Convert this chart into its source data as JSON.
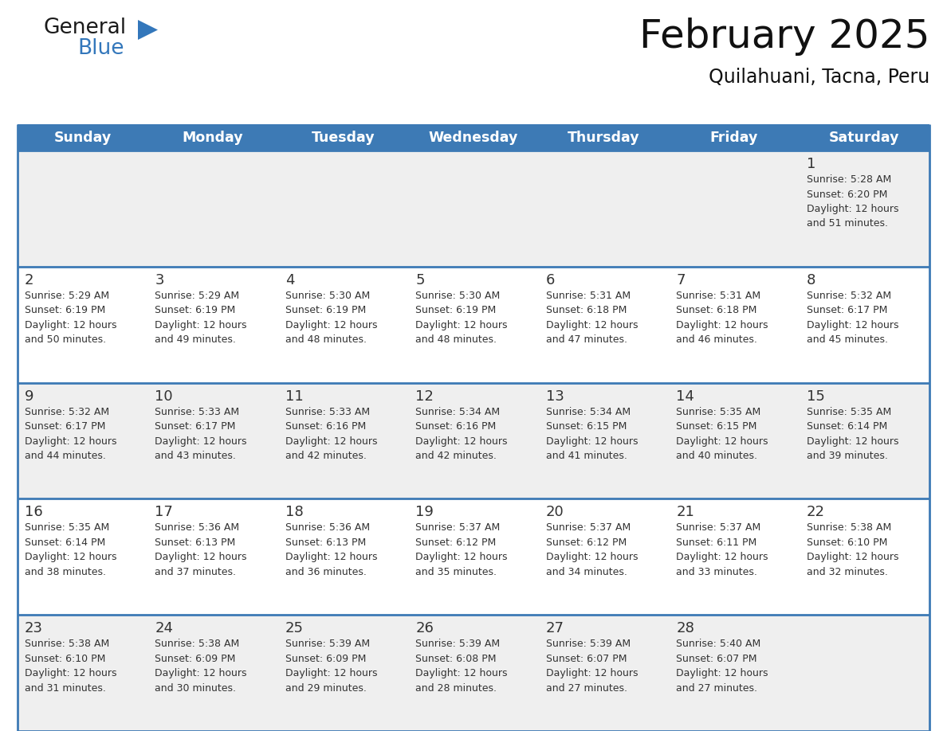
{
  "title": "February 2025",
  "subtitle": "Quilahuani, Tacna, Peru",
  "header_bg": "#3d7ab5",
  "header_text_color": "#FFFFFF",
  "day_names": [
    "Sunday",
    "Monday",
    "Tuesday",
    "Wednesday",
    "Thursday",
    "Friday",
    "Saturday"
  ],
  "cell_bg_light": "#EFEFEF",
  "cell_bg_white": "#FFFFFF",
  "cell_border_color": "#3d7ab5",
  "day_number_color": "#333333",
  "info_text_color": "#333333",
  "title_color": "#111111",
  "subtitle_color": "#111111",
  "weeks": [
    [
      {
        "day": null,
        "info": null
      },
      {
        "day": null,
        "info": null
      },
      {
        "day": null,
        "info": null
      },
      {
        "day": null,
        "info": null
      },
      {
        "day": null,
        "info": null
      },
      {
        "day": null,
        "info": null
      },
      {
        "day": 1,
        "info": "Sunrise: 5:28 AM\nSunset: 6:20 PM\nDaylight: 12 hours\nand 51 minutes."
      }
    ],
    [
      {
        "day": 2,
        "info": "Sunrise: 5:29 AM\nSunset: 6:19 PM\nDaylight: 12 hours\nand 50 minutes."
      },
      {
        "day": 3,
        "info": "Sunrise: 5:29 AM\nSunset: 6:19 PM\nDaylight: 12 hours\nand 49 minutes."
      },
      {
        "day": 4,
        "info": "Sunrise: 5:30 AM\nSunset: 6:19 PM\nDaylight: 12 hours\nand 48 minutes."
      },
      {
        "day": 5,
        "info": "Sunrise: 5:30 AM\nSunset: 6:19 PM\nDaylight: 12 hours\nand 48 minutes."
      },
      {
        "day": 6,
        "info": "Sunrise: 5:31 AM\nSunset: 6:18 PM\nDaylight: 12 hours\nand 47 minutes."
      },
      {
        "day": 7,
        "info": "Sunrise: 5:31 AM\nSunset: 6:18 PM\nDaylight: 12 hours\nand 46 minutes."
      },
      {
        "day": 8,
        "info": "Sunrise: 5:32 AM\nSunset: 6:17 PM\nDaylight: 12 hours\nand 45 minutes."
      }
    ],
    [
      {
        "day": 9,
        "info": "Sunrise: 5:32 AM\nSunset: 6:17 PM\nDaylight: 12 hours\nand 44 minutes."
      },
      {
        "day": 10,
        "info": "Sunrise: 5:33 AM\nSunset: 6:17 PM\nDaylight: 12 hours\nand 43 minutes."
      },
      {
        "day": 11,
        "info": "Sunrise: 5:33 AM\nSunset: 6:16 PM\nDaylight: 12 hours\nand 42 minutes."
      },
      {
        "day": 12,
        "info": "Sunrise: 5:34 AM\nSunset: 6:16 PM\nDaylight: 12 hours\nand 42 minutes."
      },
      {
        "day": 13,
        "info": "Sunrise: 5:34 AM\nSunset: 6:15 PM\nDaylight: 12 hours\nand 41 minutes."
      },
      {
        "day": 14,
        "info": "Sunrise: 5:35 AM\nSunset: 6:15 PM\nDaylight: 12 hours\nand 40 minutes."
      },
      {
        "day": 15,
        "info": "Sunrise: 5:35 AM\nSunset: 6:14 PM\nDaylight: 12 hours\nand 39 minutes."
      }
    ],
    [
      {
        "day": 16,
        "info": "Sunrise: 5:35 AM\nSunset: 6:14 PM\nDaylight: 12 hours\nand 38 minutes."
      },
      {
        "day": 17,
        "info": "Sunrise: 5:36 AM\nSunset: 6:13 PM\nDaylight: 12 hours\nand 37 minutes."
      },
      {
        "day": 18,
        "info": "Sunrise: 5:36 AM\nSunset: 6:13 PM\nDaylight: 12 hours\nand 36 minutes."
      },
      {
        "day": 19,
        "info": "Sunrise: 5:37 AM\nSunset: 6:12 PM\nDaylight: 12 hours\nand 35 minutes."
      },
      {
        "day": 20,
        "info": "Sunrise: 5:37 AM\nSunset: 6:12 PM\nDaylight: 12 hours\nand 34 minutes."
      },
      {
        "day": 21,
        "info": "Sunrise: 5:37 AM\nSunset: 6:11 PM\nDaylight: 12 hours\nand 33 minutes."
      },
      {
        "day": 22,
        "info": "Sunrise: 5:38 AM\nSunset: 6:10 PM\nDaylight: 12 hours\nand 32 minutes."
      }
    ],
    [
      {
        "day": 23,
        "info": "Sunrise: 5:38 AM\nSunset: 6:10 PM\nDaylight: 12 hours\nand 31 minutes."
      },
      {
        "day": 24,
        "info": "Sunrise: 5:38 AM\nSunset: 6:09 PM\nDaylight: 12 hours\nand 30 minutes."
      },
      {
        "day": 25,
        "info": "Sunrise: 5:39 AM\nSunset: 6:09 PM\nDaylight: 12 hours\nand 29 minutes."
      },
      {
        "day": 26,
        "info": "Sunrise: 5:39 AM\nSunset: 6:08 PM\nDaylight: 12 hours\nand 28 minutes."
      },
      {
        "day": 27,
        "info": "Sunrise: 5:39 AM\nSunset: 6:07 PM\nDaylight: 12 hours\nand 27 minutes."
      },
      {
        "day": 28,
        "info": "Sunrise: 5:40 AM\nSunset: 6:07 PM\nDaylight: 12 hours\nand 27 minutes."
      },
      {
        "day": null,
        "info": null
      }
    ]
  ]
}
